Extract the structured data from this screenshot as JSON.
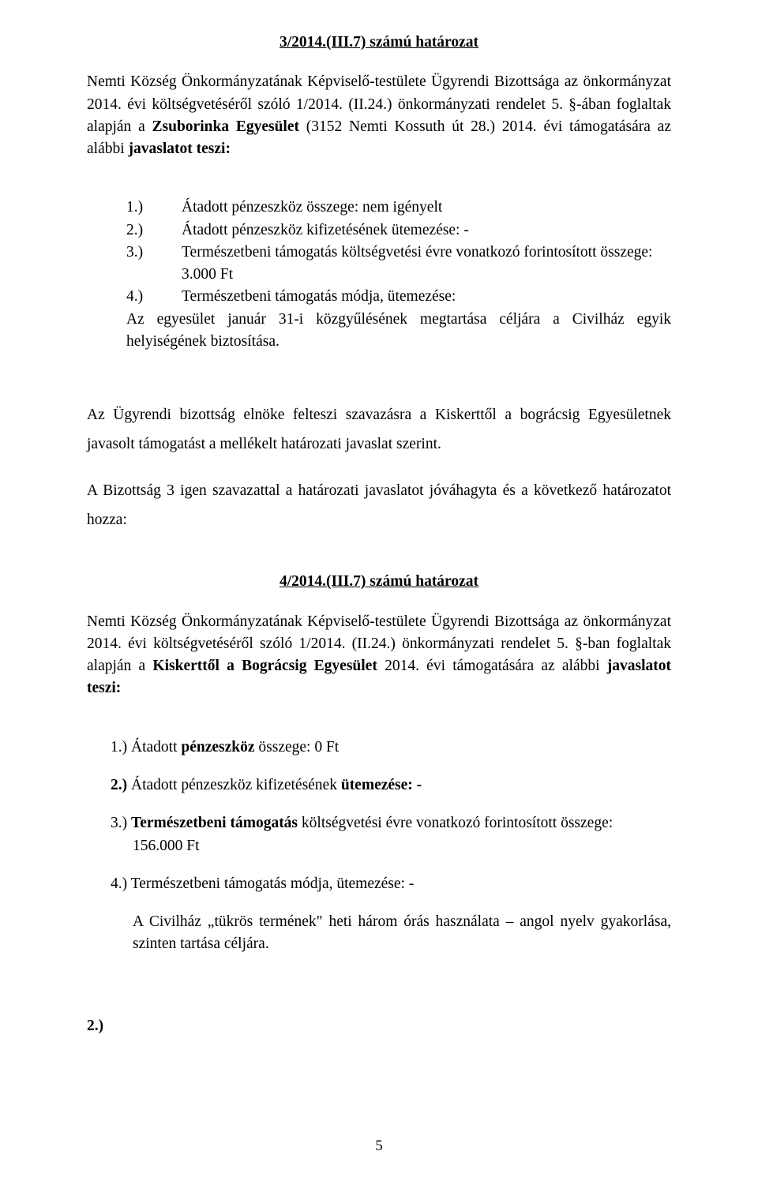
{
  "page_number": "5",
  "res1": {
    "title": "3/2014.(III.7) számú határozat",
    "intro_parts": {
      "p1": "Nemti Község Önkormányzatának Képviselő-testülete Ügyrendi Bizottsága  az önkormányzat 2014. évi költségvetéséről szóló  1/2014. (II.24.) önkormányzati rendelet 5. §-ában foglaltak alapján a ",
      "org": "Zsuborinka Egyesület ",
      "p2": "(3152 Nemti Kossuth út 28.) 2014. évi támogatására az alábbi ",
      "tail_bold": "javaslatot teszi:"
    },
    "items": {
      "n1": "1.)",
      "t1": "Átadott pénzeszköz összege: nem igényelt",
      "n2": "2.)",
      "t2": "Átadott pénzeszköz kifizetésének ütemezése: -",
      "n3": "3.)",
      "t3": "Természetbeni támogatás költségvetési évre vonatkozó forintosított összege:",
      "t3_amount": "3.000 Ft",
      "n4": "4.)",
      "t4": "Természetbeni támogatás módja, ütemezése:",
      "t4_body": "Az egyesület január 31-i közgyűlésének megtartása céljára a Civilház egyik helyiségének biztosítása."
    }
  },
  "mid": {
    "p1": "Az Ügyrendi bizottság elnöke felteszi szavazásra a Kiskerttől a bográcsig Egyesületnek javasolt támogatást a mellékelt határozati javaslat szerint.",
    "p2": "A Bizottság 3 igen szavazattal a határozati javaslatot jóváhagyta és a következő határozatot hozza:"
  },
  "res2": {
    "title": "4/2014.(III.7) számú határozat",
    "intro_parts": {
      "p1": "Nemti Község Önkormányzatának Képviselő-testülete Ügyrendi Bizottsága az önkormányzat 2014. évi költségvetéséről szóló 1/2014. (II.24.) önkormányzati rendelet 5. §-ban foglaltak alapján a ",
      "org": "Kiskerttől a Bográcsig Egyesület ",
      "p2": "2014. évi támogatására az alábbi ",
      "tail_bold": "javaslatot teszi:"
    },
    "items": {
      "l1_pre": "1.) Átadott ",
      "l1_bold": "pénzeszköz ",
      "l1_post": "összege: 0  Ft",
      "l2_bold1": "2.) ",
      "l2_plain": "Átadott pénzeszköz kifizetésének ",
      "l2_bold2": "ütemezése: -",
      "l3_pre": "3.) ",
      "l3_bold": "Természetbeni támogatás ",
      "l3_post": "költségvetési évre vonatkozó forintosított összege:",
      "l3_amount": "156.000 Ft",
      "l4": "4.) Természetbeni támogatás módja, ütemezése: -",
      "l4_body": "A Civilház „tükrös termének\" heti három órás használata – angol nyelv gyakorlása, szinten tartása céljára."
    }
  },
  "trailing": "2.)"
}
